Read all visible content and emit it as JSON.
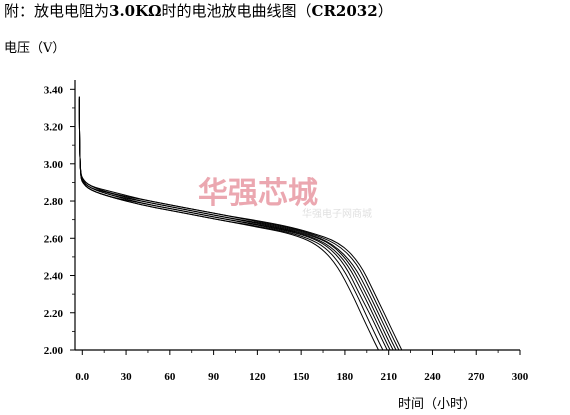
{
  "chart_data": {
    "type": "line",
    "title_prefix": "附：放电电阻为",
    "title_bold": "3.0KΩ",
    "title_suffix": "时的电池放电曲线图（",
    "title_model": "CR2032",
    "title_end": "）",
    "ylabel": "电压（V）",
    "xlabel": "时间（小时）",
    "xlim": [
      -5,
      300
    ],
    "ylim": [
      2.0,
      3.45
    ],
    "x_ticks": [
      0,
      30,
      60,
      90,
      120,
      150,
      180,
      210,
      240,
      270,
      300
    ],
    "x_tick_labels": [
      "0.0",
      "30",
      "60",
      "90",
      "120",
      "150",
      "180",
      "210",
      "240",
      "270",
      "300"
    ],
    "y_ticks": [
      2.0,
      2.2,
      2.4,
      2.6,
      2.8,
      3.0,
      3.2,
      3.4
    ],
    "y_tick_labels": [
      "2.00",
      "2.20",
      "2.40",
      "2.60",
      "2.80",
      "3.00",
      "3.20",
      "3.40"
    ],
    "grid": false,
    "legend": "none",
    "line_color": "#000000",
    "series": [
      {
        "x": [
          -2,
          -2,
          -1.5,
          -1,
          0,
          5,
          20,
          40,
          60,
          80,
          100,
          120,
          140,
          155,
          165,
          175,
          185,
          192,
          198,
          203
        ],
        "y": [
          3.36,
          3.2,
          3.0,
          2.93,
          2.9,
          2.86,
          2.82,
          2.78,
          2.75,
          2.72,
          2.69,
          2.66,
          2.63,
          2.59,
          2.54,
          2.45,
          2.3,
          2.18,
          2.08,
          2.0
        ]
      },
      {
        "x": [
          -2,
          -2,
          -1.5,
          -1,
          0,
          5,
          20,
          40,
          60,
          80,
          100,
          120,
          140,
          155,
          167,
          178,
          188,
          195,
          201,
          206
        ],
        "y": [
          3.35,
          3.2,
          3.0,
          2.93,
          2.9,
          2.86,
          2.82,
          2.78,
          2.75,
          2.72,
          2.69,
          2.665,
          2.635,
          2.6,
          2.55,
          2.45,
          2.3,
          2.18,
          2.08,
          2.0
        ]
      },
      {
        "x": [
          -2,
          -2,
          -1.5,
          -1,
          0,
          5,
          20,
          40,
          60,
          80,
          100,
          120,
          140,
          155,
          168,
          180,
          190,
          198,
          204,
          209
        ],
        "y": [
          3.35,
          3.2,
          3.0,
          2.93,
          2.9,
          2.86,
          2.82,
          2.79,
          2.76,
          2.73,
          2.7,
          2.67,
          2.64,
          2.61,
          2.56,
          2.46,
          2.3,
          2.18,
          2.08,
          2.0
        ]
      },
      {
        "x": [
          -2,
          -2,
          -1.5,
          -1,
          0,
          5,
          20,
          40,
          60,
          80,
          100,
          120,
          140,
          155,
          170,
          182,
          192,
          200,
          206,
          211
        ],
        "y": [
          3.36,
          3.2,
          3.0,
          2.94,
          2.91,
          2.87,
          2.83,
          2.79,
          2.76,
          2.73,
          2.7,
          2.675,
          2.645,
          2.615,
          2.56,
          2.46,
          2.31,
          2.18,
          2.08,
          2.0
        ]
      },
      {
        "x": [
          -2,
          -2,
          -1.5,
          -1,
          0,
          5,
          20,
          40,
          60,
          80,
          100,
          120,
          140,
          155,
          171,
          184,
          194,
          202,
          208,
          213
        ],
        "y": [
          3.35,
          3.2,
          3.0,
          2.94,
          2.91,
          2.87,
          2.83,
          2.8,
          2.77,
          2.74,
          2.71,
          2.68,
          2.65,
          2.62,
          2.57,
          2.46,
          2.31,
          2.18,
          2.08,
          2.0
        ]
      },
      {
        "x": [
          -2,
          -2,
          -1.5,
          -1,
          0,
          5,
          20,
          40,
          60,
          80,
          100,
          120,
          140,
          155,
          172,
          186,
          196,
          204,
          210,
          215
        ],
        "y": [
          3.36,
          3.2,
          3.0,
          2.94,
          2.91,
          2.87,
          2.84,
          2.8,
          2.77,
          2.74,
          2.71,
          2.685,
          2.655,
          2.625,
          2.57,
          2.46,
          2.31,
          2.18,
          2.08,
          2.0
        ]
      },
      {
        "x": [
          -2,
          -2,
          -1.5,
          -1,
          0,
          5,
          20,
          40,
          60,
          80,
          100,
          120,
          140,
          155,
          174,
          188,
          198,
          206,
          212,
          217
        ],
        "y": [
          3.35,
          3.2,
          3.0,
          2.95,
          2.92,
          2.88,
          2.84,
          2.81,
          2.78,
          2.75,
          2.72,
          2.69,
          2.66,
          2.63,
          2.575,
          2.47,
          2.31,
          2.18,
          2.08,
          2.0
        ]
      },
      {
        "x": [
          -2,
          -2,
          -1.5,
          -1,
          0,
          5,
          20,
          40,
          60,
          80,
          100,
          120,
          140,
          155,
          176,
          190,
          200,
          208,
          214,
          219
        ],
        "y": [
          3.36,
          3.2,
          3.0,
          2.95,
          2.92,
          2.88,
          2.85,
          2.81,
          2.78,
          2.75,
          2.72,
          2.695,
          2.665,
          2.635,
          2.58,
          2.47,
          2.31,
          2.18,
          2.08,
          2.0
        ]
      }
    ]
  },
  "watermark": {
    "main": "华强芯城",
    "sub": "华强电子网商城"
  }
}
